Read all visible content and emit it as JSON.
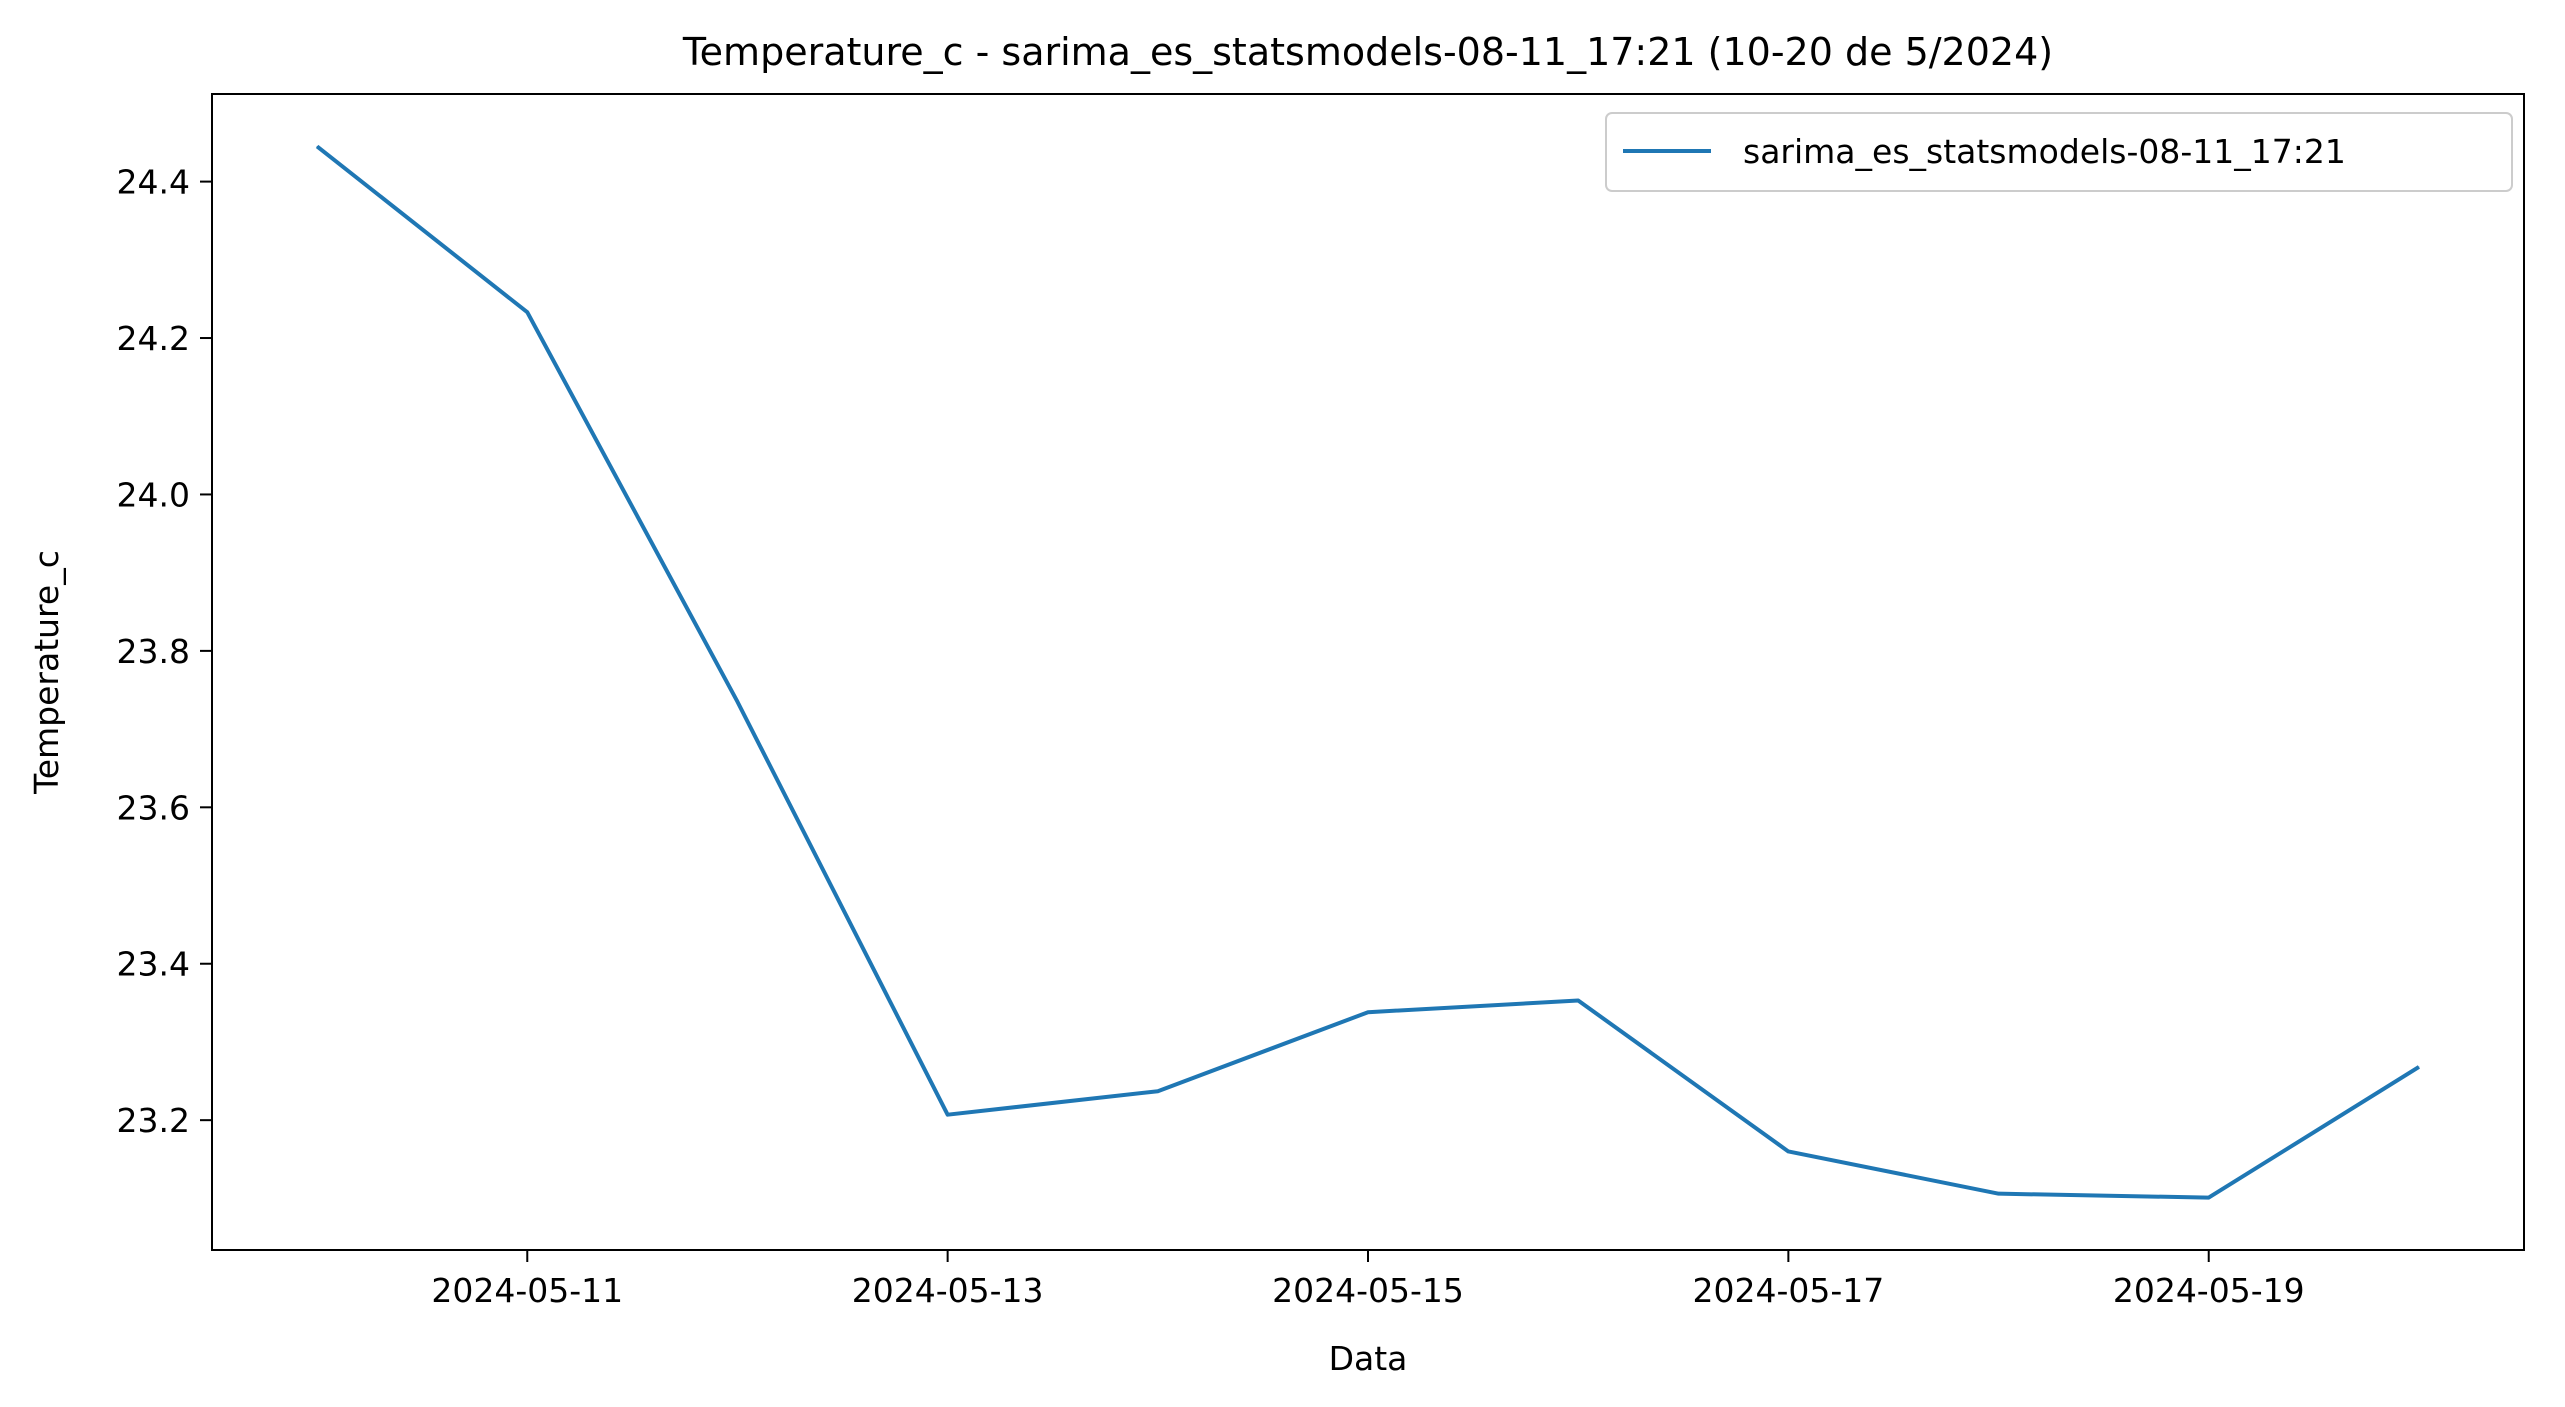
{
  "chart_data": {
    "type": "line",
    "title": "Temperature_c - sarima_es_statsmodels-08-11_17:21 (10-20 de 5/2024)",
    "xlabel": "Data",
    "ylabel": "Temperature_c",
    "x": [
      "2024-05-10",
      "2024-05-11",
      "2024-05-12",
      "2024-05-13",
      "2024-05-14",
      "2024-05-15",
      "2024-05-16",
      "2024-05-17",
      "2024-05-18",
      "2024-05-19",
      "2024-05-20"
    ],
    "series": [
      {
        "name": "sarima_es_statsmodels-08-11_17:21",
        "color": "#1f77b4",
        "values": [
          24.445,
          24.233,
          23.735,
          23.207,
          23.237,
          23.338,
          23.353,
          23.16,
          23.106,
          23.101,
          23.268
        ]
      }
    ],
    "x_ticks": [
      "2024-05-11",
      "2024-05-13",
      "2024-05-15",
      "2024-05-17",
      "2024-05-19"
    ],
    "y_ticks": [
      23.2,
      23.4,
      23.6,
      23.8,
      24.0,
      24.2,
      24.4
    ],
    "y_tick_labels": [
      "23.2",
      "23.4",
      "23.6",
      "23.8",
      "24.0",
      "24.2",
      "24.4"
    ],
    "xlim": [
      "2024-05-09T12:00",
      "2024-05-20T12:00"
    ],
    "ylim": [
      23.034,
      24.512
    ],
    "grid": false,
    "legend_position": "upper right"
  }
}
